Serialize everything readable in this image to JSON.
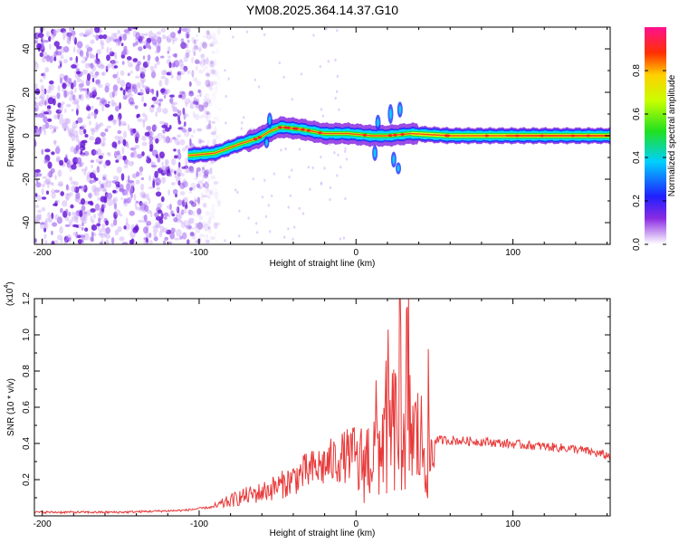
{
  "title": "YM08.2025.364.14.37.G10",
  "chart_data": [
    {
      "type": "heatmap",
      "name": "spectrogram",
      "xlabel": "Height of straight line (km)",
      "ylabel": "Frequency (Hz)",
      "xlim": [
        -205,
        162
      ],
      "ylim": [
        -50,
        50
      ],
      "xticks": [
        -200,
        -100,
        0,
        100
      ],
      "xtick_labels": [
        "-200",
        "-100",
        "0",
        "100"
      ],
      "yticks": [
        -40,
        -20,
        0,
        20,
        40
      ],
      "ytick_labels": [
        "-40",
        "-20",
        "0",
        "20",
        "40"
      ],
      "colorbar": {
        "label": "Normalized spectral amplitude",
        "range": [
          0,
          1
        ],
        "ticks": [
          0.0,
          0.2,
          0.4,
          0.6,
          0.8
        ],
        "tick_labels": [
          "0.0",
          "0.2",
          "0.4",
          "0.6",
          "0.8"
        ]
      },
      "trend_center_hz": [
        [
          -105,
          -9
        ],
        [
          -90,
          -8
        ],
        [
          -75,
          -4
        ],
        [
          -62,
          -1
        ],
        [
          -55,
          2
        ],
        [
          -48,
          4
        ],
        [
          -35,
          3
        ],
        [
          -20,
          1
        ],
        [
          -5,
          1
        ],
        [
          10,
          0
        ],
        [
          20,
          0
        ],
        [
          35,
          1
        ],
        [
          60,
          0
        ],
        [
          100,
          0
        ],
        [
          162,
          0
        ]
      ]
    },
    {
      "type": "line",
      "name": "snr",
      "xlabel": "Height of straight line (km)",
      "ylabel": "SNR (10 * v/v)",
      "exponent_label": "(x10",
      "exponent_power": "4",
      "exponent_close": ")",
      "xlim": [
        -205,
        162
      ],
      "ylim": [
        0,
        1.2
      ],
      "xticks": [
        -200,
        -100,
        0,
        100
      ],
      "xtick_labels": [
        "-200",
        "-100",
        "0",
        "100"
      ],
      "yticks": [
        0.2,
        0.4,
        0.6,
        0.8,
        1.0,
        1.2
      ],
      "ytick_labels": [
        "0.2",
        "0.4",
        "0.6",
        "0.8",
        "1.0",
        "1.2"
      ],
      "series_color": "#e83a3a",
      "envelope": [
        [
          -205,
          0.02
        ],
        [
          -150,
          0.02
        ],
        [
          -110,
          0.03
        ],
        [
          -90,
          0.05
        ],
        [
          -75,
          0.1
        ],
        [
          -60,
          0.13
        ],
        [
          -45,
          0.18
        ],
        [
          -35,
          0.23
        ],
        [
          -20,
          0.28
        ],
        [
          -10,
          0.32
        ],
        [
          0,
          0.35
        ],
        [
          10,
          0.45
        ],
        [
          20,
          0.6
        ],
        [
          30,
          0.7
        ],
        [
          40,
          0.55
        ],
        [
          50,
          0.42
        ],
        [
          80,
          0.41
        ],
        [
          110,
          0.39
        ],
        [
          140,
          0.37
        ],
        [
          162,
          0.33
        ]
      ]
    }
  ]
}
